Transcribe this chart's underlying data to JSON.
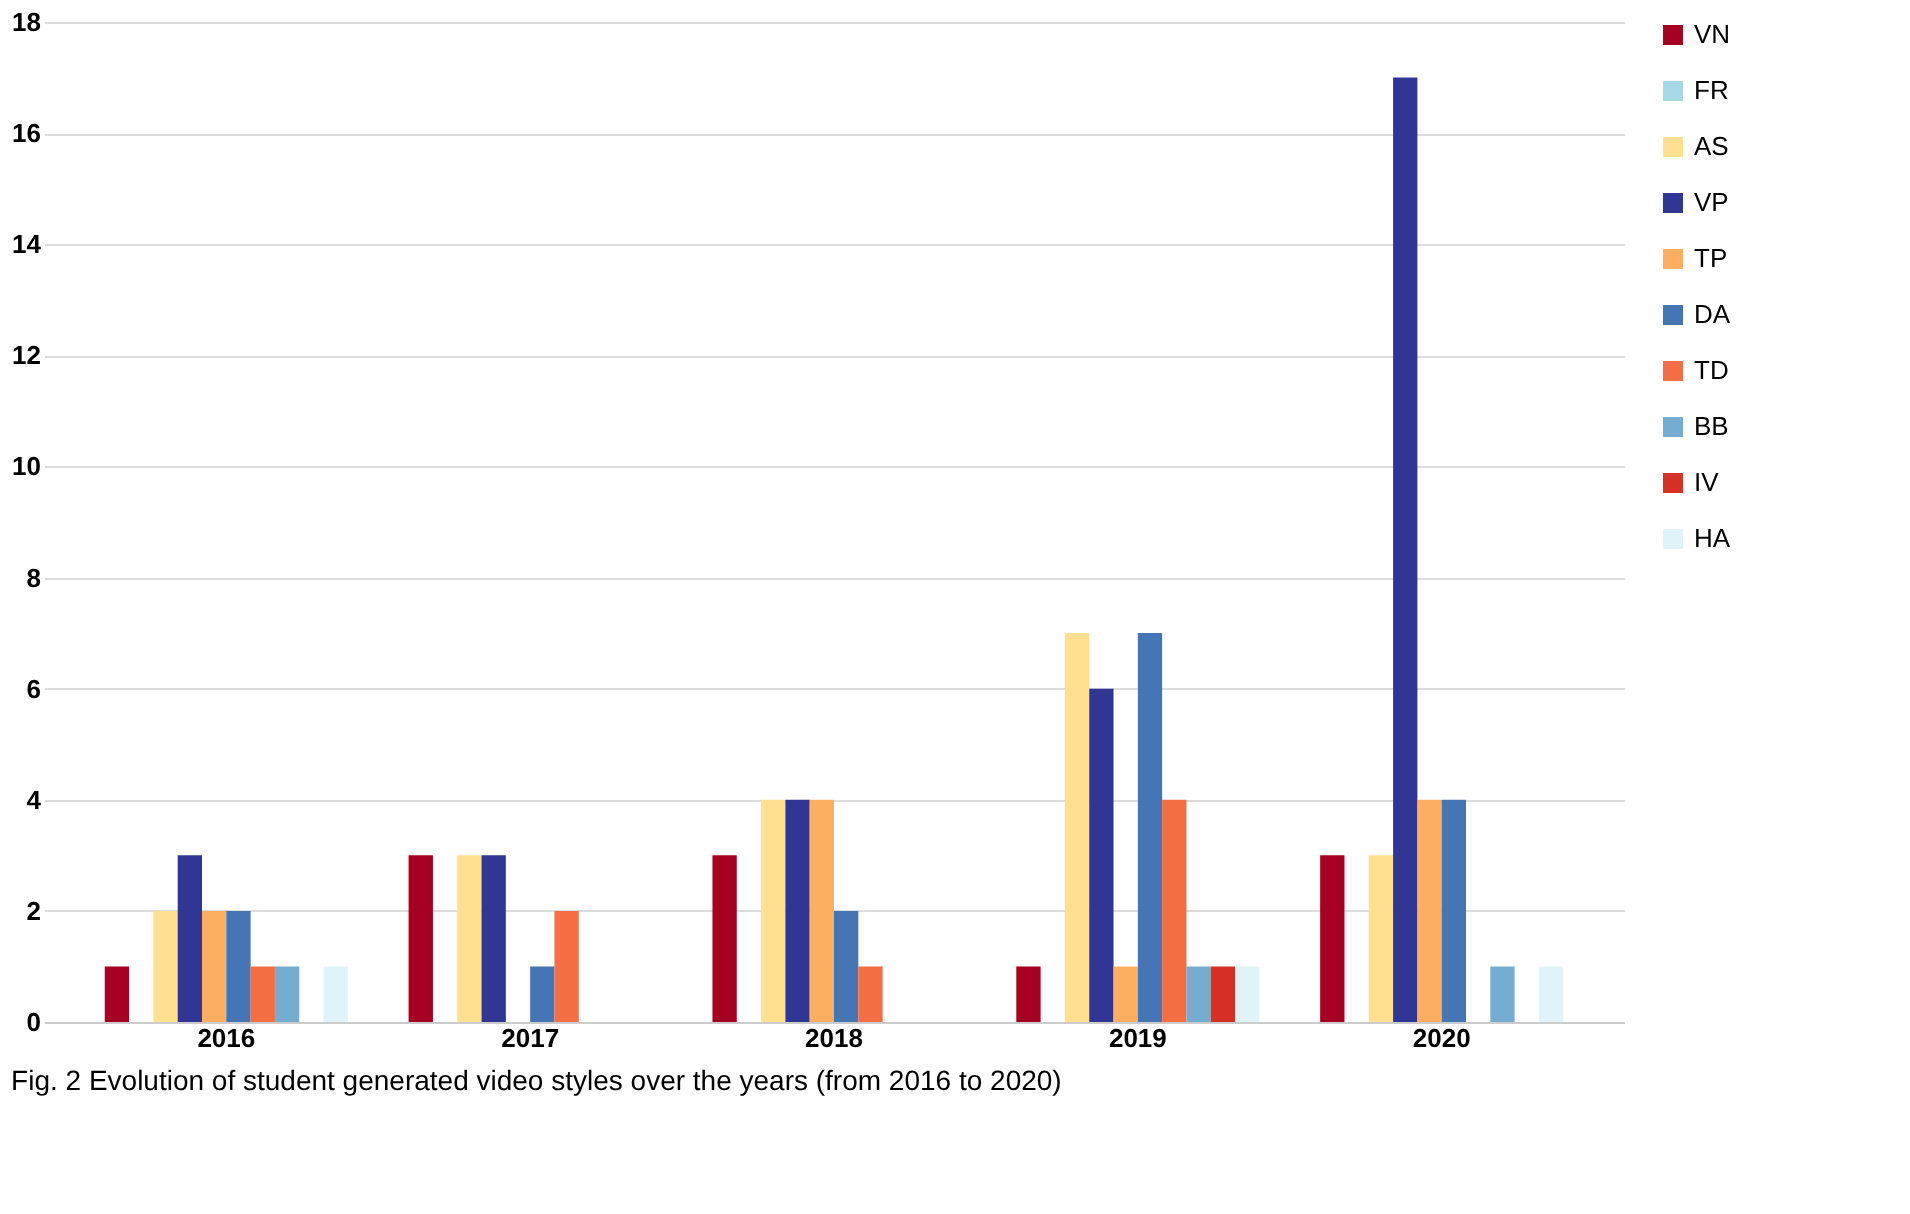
{
  "chart_data": {
    "type": "bar",
    "categories": [
      "2016",
      "2017",
      "2018",
      "2019",
      "2020"
    ],
    "series": [
      {
        "name": "VN",
        "color": "#a50021",
        "values": [
          1,
          3,
          3,
          1,
          3
        ]
      },
      {
        "name": "FR",
        "color": "#a6d8e8",
        "values": [
          0,
          0,
          0,
          0,
          0
        ]
      },
      {
        "name": "AS",
        "color": "#fee090",
        "values": [
          2,
          3,
          4,
          7,
          3
        ]
      },
      {
        "name": "VP",
        "color": "#313695",
        "values": [
          3,
          3,
          4,
          6,
          17
        ]
      },
      {
        "name": "TP",
        "color": "#fdae61",
        "values": [
          2,
          0,
          4,
          1,
          4
        ]
      },
      {
        "name": "DA",
        "color": "#4575b4",
        "values": [
          2,
          1,
          2,
          7,
          4
        ]
      },
      {
        "name": "TD",
        "color": "#f46d43",
        "values": [
          1,
          2,
          1,
          4,
          0
        ]
      },
      {
        "name": "BB",
        "color": "#74add1",
        "values": [
          1,
          0,
          0,
          1,
          1
        ]
      },
      {
        "name": "IV",
        "color": "#d73027",
        "values": [
          0,
          0,
          0,
          1,
          0
        ]
      },
      {
        "name": "HA",
        "color": "#e0f3f8",
        "values": [
          1,
          0,
          0,
          1,
          1
        ]
      }
    ],
    "ylim": [
      0,
      18
    ],
    "yticks": [
      0,
      2,
      4,
      6,
      8,
      10,
      12,
      14,
      16,
      18
    ],
    "grid": "y",
    "legend": "right",
    "annotations": [
      "Fig. 2  Evolution of student generated video styles over the years (from 2016 to 2020)"
    ]
  }
}
